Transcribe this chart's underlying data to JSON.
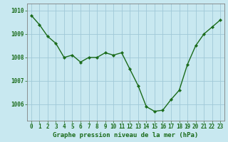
{
  "x": [
    0,
    1,
    2,
    3,
    4,
    5,
    6,
    7,
    8,
    9,
    10,
    11,
    12,
    13,
    14,
    15,
    16,
    17,
    18,
    19,
    20,
    21,
    22,
    23
  ],
  "y": [
    1009.8,
    1009.4,
    1008.9,
    1008.6,
    1008.0,
    1008.1,
    1007.8,
    1008.0,
    1008.0,
    1008.2,
    1008.1,
    1008.2,
    1007.5,
    1006.8,
    1005.9,
    1005.7,
    1005.75,
    1006.2,
    1006.6,
    1007.7,
    1008.5,
    1009.0,
    1009.3,
    1009.6
  ],
  "line_color": "#1a6b1a",
  "marker_color": "#1a6b1a",
  "bg_color": "#c8e8f0",
  "grid_color": "#a0c8d8",
  "border_color": "#808080",
  "xlabel": "Graphe pression niveau de la mer (hPa)",
  "xlabel_color": "#1a6b1a",
  "ylabel_ticks": [
    1006,
    1007,
    1008,
    1009,
    1010
  ],
  "ylim": [
    1005.3,
    1010.3
  ],
  "xlim": [
    -0.5,
    23.5
  ],
  "tick_label_color": "#1a6b1a",
  "font_size_xlabel": 6.5,
  "font_size_ticks": 5.5
}
